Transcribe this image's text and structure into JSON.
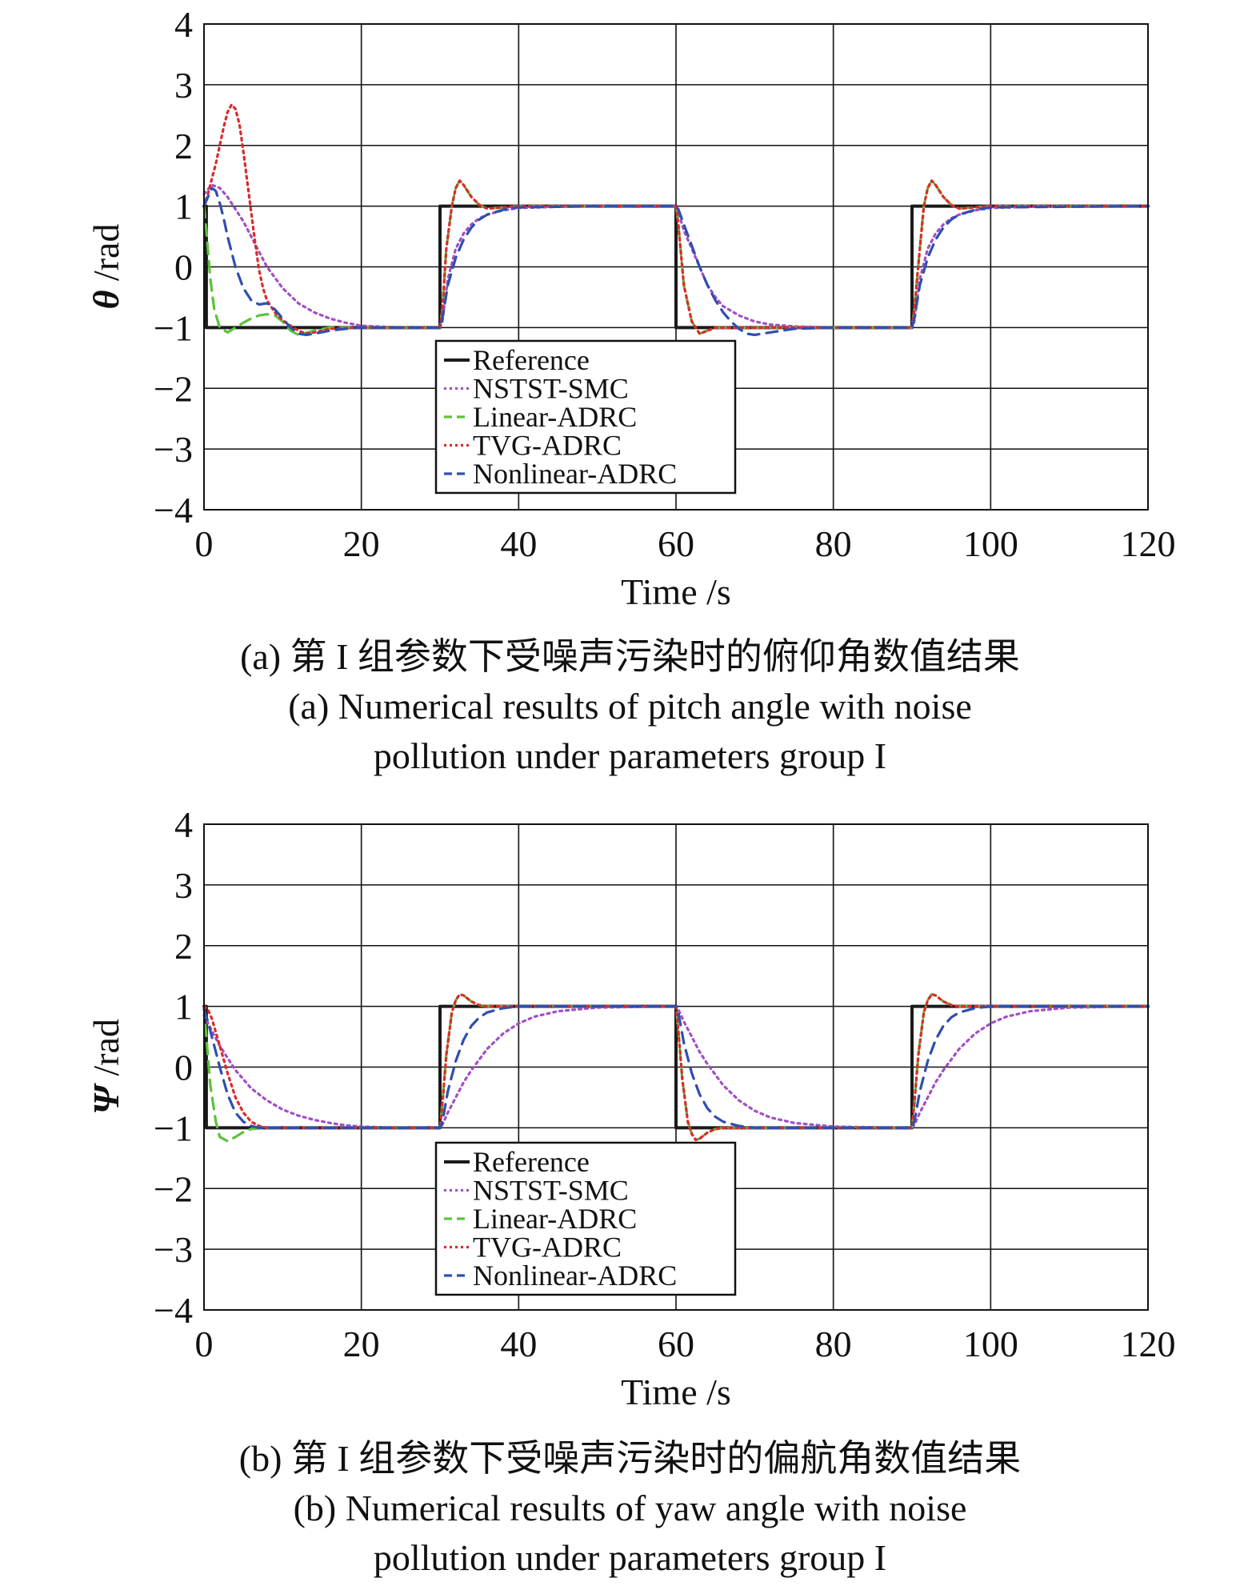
{
  "colors": {
    "Reference": "#1a1a1a",
    "NSTST-SMC": "#a24fc4",
    "Linear-ADRC": "#5cc23a",
    "TVG-ADRC": "#dd2a2a",
    "Nonlinear-ADRC": "#2e4fb0",
    "grid": "#111111"
  },
  "chart_data": [
    {
      "type": "line",
      "xlabel": "Time /s",
      "ylabel_symbol": "θ",
      "ylabel_unit": " /rad",
      "xlim": [
        0,
        120
      ],
      "ylim": [
        -4,
        4
      ],
      "xticks": [
        "0",
        "20",
        "40",
        "60",
        "80",
        "100",
        "120"
      ],
      "yticks": [
        "4",
        "3",
        "2",
        "1",
        "0",
        "−1",
        "−2",
        "−3",
        "−4"
      ],
      "grid": true,
      "legend_position": "bottom-center",
      "legend": [
        "Reference",
        "NSTST-SMC",
        "Linear-ADRC",
        "TVG-ADRC",
        "Nonlinear-ADRC"
      ],
      "series": [
        {
          "name": "Reference",
          "style": "solid",
          "x": [
            0,
            0.3,
            0.3,
            30,
            30,
            60,
            60,
            90,
            90,
            120
          ],
          "y": [
            1,
            1,
            -1,
            -1,
            1,
            1,
            -1,
            -1,
            1,
            1
          ]
        },
        {
          "name": "NSTST-SMC",
          "style": "dotted",
          "x": [
            0,
            1,
            2,
            3,
            4,
            5,
            6,
            7,
            8,
            10,
            12,
            14,
            16,
            18,
            20,
            25,
            30,
            30.3,
            31,
            32,
            33,
            34,
            35,
            36,
            38,
            40,
            45,
            50,
            60,
            60.3,
            61,
            62,
            63,
            64,
            65,
            66,
            68,
            70,
            72,
            75,
            80,
            90,
            90.3,
            91,
            92,
            93,
            94,
            95,
            96,
            98,
            100,
            105,
            110,
            120
          ],
          "y": [
            1.2,
            1.35,
            1.3,
            1.15,
            0.95,
            0.75,
            0.5,
            0.25,
            0.0,
            -0.35,
            -0.6,
            -0.75,
            -0.85,
            -0.92,
            -0.97,
            -1.0,
            -1.0,
            -0.9,
            -0.2,
            0.3,
            0.55,
            0.7,
            0.8,
            0.86,
            0.93,
            0.97,
            0.99,
            1.0,
            1.0,
            0.9,
            0.6,
            0.3,
            0.0,
            -0.3,
            -0.5,
            -0.65,
            -0.8,
            -0.9,
            -0.95,
            -0.98,
            -1.0,
            -1.0,
            -0.9,
            -0.2,
            0.3,
            0.55,
            0.7,
            0.8,
            0.86,
            0.93,
            0.97,
            0.99,
            1.0,
            1.0
          ]
        },
        {
          "name": "Linear-ADRC",
          "style": "dashed",
          "x": [
            0,
            0.3,
            0.8,
            1.3,
            2,
            3,
            4,
            5,
            6,
            7,
            8,
            9,
            10,
            11,
            12,
            14,
            16,
            20,
            30,
            30.3,
            30.8,
            31.5,
            32,
            32.5,
            33,
            34,
            35,
            36,
            38,
            40,
            50,
            60,
            60.3,
            61,
            62,
            63,
            64,
            65,
            66,
            68,
            70,
            80,
            90,
            90.3,
            91,
            91.5,
            92,
            92.5,
            93,
            94,
            95,
            96,
            98,
            100,
            110,
            120
          ],
          "y": [
            1.0,
            0.6,
            -0.2,
            -0.7,
            -1.0,
            -1.08,
            -1.0,
            -0.92,
            -0.85,
            -0.8,
            -0.78,
            -0.8,
            -0.9,
            -1.05,
            -1.12,
            -1.05,
            -1.0,
            -1.0,
            -1.0,
            -0.7,
            0.3,
            1.0,
            1.3,
            1.42,
            1.35,
            1.15,
            1.02,
            0.96,
            0.98,
            1.0,
            1.0,
            1.0,
            0.7,
            -0.3,
            -0.9,
            -1.1,
            -1.05,
            -1.0,
            -1.0,
            -1.0,
            -1.0,
            -1.0,
            -1.0,
            -0.7,
            0.3,
            1.0,
            1.3,
            1.42,
            1.35,
            1.15,
            1.02,
            0.96,
            0.98,
            1.0,
            1.0,
            1.0
          ]
        },
        {
          "name": "TVG-ADRC",
          "style": "dotted",
          "x": [
            0,
            0.5,
            1,
            1.5,
            2,
            2.5,
            3,
            3.5,
            4,
            4.5,
            5,
            5.5,
            6,
            6.5,
            7,
            7.5,
            8,
            9,
            10,
            11,
            12,
            13,
            14,
            16,
            20,
            30,
            30.3,
            30.8,
            31.5,
            32,
            32.5,
            33,
            34,
            35,
            36,
            38,
            40,
            50,
            60,
            60.3,
            61,
            62,
            63,
            64,
            65,
            66,
            68,
            70,
            80,
            90,
            90.3,
            91,
            91.5,
            92,
            92.5,
            93,
            94,
            95,
            96,
            98,
            100,
            110,
            120
          ],
          "y": [
            1.0,
            1.2,
            1.45,
            1.7,
            2.0,
            2.3,
            2.55,
            2.67,
            2.6,
            2.35,
            1.9,
            1.4,
            0.9,
            0.4,
            -0.05,
            -0.35,
            -0.55,
            -0.75,
            -0.88,
            -0.97,
            -1.05,
            -1.1,
            -1.08,
            -1.02,
            -1.0,
            -1.0,
            -0.7,
            0.3,
            1.0,
            1.3,
            1.42,
            1.35,
            1.15,
            1.02,
            0.96,
            0.98,
            1.0,
            1.0,
            1.0,
            0.7,
            -0.3,
            -0.9,
            -1.1,
            -1.05,
            -1.0,
            -1.0,
            -1.0,
            -1.0,
            -1.0,
            -1.0,
            -0.7,
            0.3,
            1.0,
            1.3,
            1.42,
            1.35,
            1.15,
            1.02,
            0.96,
            0.98,
            1.0,
            1.0,
            1.0
          ]
        },
        {
          "name": "Nonlinear-ADRC",
          "style": "dashed",
          "x": [
            0,
            0.5,
            1,
            1.5,
            2,
            2.5,
            3,
            4,
            5,
            6,
            7,
            8,
            9,
            10,
            11,
            12,
            13,
            14,
            16,
            18,
            20,
            30,
            30.3,
            31,
            32,
            33,
            34,
            35,
            36,
            38,
            40,
            50,
            60,
            60.3,
            61,
            62,
            63,
            64,
            65,
            66,
            67,
            68,
            69,
            70,
            72,
            75,
            80,
            90,
            90.3,
            91,
            92,
            93,
            94,
            95,
            96,
            98,
            100,
            120
          ],
          "y": [
            1.0,
            1.15,
            1.3,
            1.25,
            1.05,
            0.8,
            0.5,
            0.0,
            -0.35,
            -0.55,
            -0.62,
            -0.6,
            -0.7,
            -0.85,
            -1.0,
            -1.1,
            -1.12,
            -1.1,
            -1.05,
            -1.02,
            -1.0,
            -1.0,
            -0.85,
            -0.3,
            0.15,
            0.45,
            0.65,
            0.78,
            0.86,
            0.94,
            0.98,
            1.0,
            1.0,
            0.95,
            0.7,
            0.35,
            0.0,
            -0.3,
            -0.55,
            -0.75,
            -0.9,
            -1.02,
            -1.1,
            -1.12,
            -1.08,
            -1.02,
            -1.0,
            -1.0,
            -0.85,
            -0.3,
            0.15,
            0.45,
            0.65,
            0.78,
            0.86,
            0.94,
            0.98,
            1.0
          ]
        }
      ]
    },
    {
      "type": "line",
      "xlabel": "Time /s",
      "ylabel_symbol": "Ψ",
      "ylabel_unit": " /rad",
      "xlim": [
        0,
        120
      ],
      "ylim": [
        -4,
        4
      ],
      "xticks": [
        "0",
        "20",
        "40",
        "60",
        "80",
        "100",
        "120"
      ],
      "yticks": [
        "4",
        "3",
        "2",
        "1",
        "0",
        "−1",
        "−2",
        "−3",
        "−4"
      ],
      "grid": true,
      "legend_position": "bottom-center",
      "legend": [
        "Reference",
        "NSTST-SMC",
        "Linear-ADRC",
        "TVG-ADRC",
        "Nonlinear-ADRC"
      ],
      "series": [
        {
          "name": "Reference",
          "style": "solid",
          "x": [
            0,
            0.3,
            0.3,
            30,
            30,
            60,
            60,
            90,
            90,
            120
          ],
          "y": [
            1,
            1,
            -1,
            -1,
            1,
            1,
            -1,
            -1,
            1,
            1
          ]
        },
        {
          "name": "NSTST-SMC",
          "style": "dotted",
          "x": [
            0,
            1,
            2,
            3,
            4,
            6,
            8,
            10,
            12,
            14,
            16,
            18,
            20,
            25,
            30,
            30.3,
            31,
            32,
            33,
            34,
            36,
            38,
            40,
            42,
            45,
            50,
            60,
            60.3,
            61,
            62,
            63,
            64,
            66,
            68,
            70,
            72,
            75,
            80,
            90,
            90.3,
            91,
            92,
            93,
            94,
            96,
            98,
            100,
            102,
            105,
            110,
            120
          ],
          "y": [
            0.85,
            0.6,
            0.35,
            0.15,
            -0.05,
            -0.35,
            -0.55,
            -0.7,
            -0.8,
            -0.87,
            -0.92,
            -0.96,
            -0.98,
            -1.0,
            -1.0,
            -0.95,
            -0.75,
            -0.5,
            -0.25,
            -0.05,
            0.3,
            0.55,
            0.72,
            0.83,
            0.92,
            0.98,
            1.0,
            0.95,
            0.75,
            0.5,
            0.25,
            0.05,
            -0.3,
            -0.55,
            -0.72,
            -0.83,
            -0.92,
            -0.98,
            -1.0,
            -0.95,
            -0.75,
            -0.5,
            -0.25,
            -0.05,
            0.3,
            0.55,
            0.72,
            0.83,
            0.92,
            0.98,
            1.0
          ]
        },
        {
          "name": "Linear-ADRC",
          "style": "dashed",
          "x": [
            0,
            0.3,
            0.8,
            1.5,
            2,
            3,
            4,
            5,
            6,
            8,
            10,
            20,
            30,
            30.3,
            30.8,
            31.5,
            32,
            32.5,
            33,
            34,
            35,
            36,
            38,
            40,
            60,
            60.3,
            60.8,
            61.5,
            62,
            62.5,
            63,
            64,
            65,
            66,
            68,
            70,
            90,
            90.3,
            90.8,
            91.5,
            92,
            92.5,
            93,
            94,
            95,
            96,
            98,
            100,
            120
          ],
          "y": [
            1.0,
            0.5,
            -0.3,
            -0.9,
            -1.15,
            -1.22,
            -1.15,
            -1.07,
            -1.02,
            -1.0,
            -1.0,
            -1.0,
            -1.0,
            -0.6,
            0.2,
            0.9,
            1.1,
            1.2,
            1.18,
            1.08,
            1.02,
            1.0,
            1.0,
            1.0,
            1.0,
            0.6,
            -0.2,
            -0.9,
            -1.1,
            -1.2,
            -1.18,
            -1.08,
            -1.02,
            -1.0,
            -1.0,
            -1.0,
            -1.0,
            -0.6,
            0.2,
            0.9,
            1.1,
            1.2,
            1.18,
            1.08,
            1.02,
            1.0,
            1.0,
            1.0,
            1.0
          ]
        },
        {
          "name": "TVG-ADRC",
          "style": "dotted",
          "x": [
            0,
            0.5,
            1,
            2,
            3,
            4,
            5,
            6,
            7,
            8,
            10,
            20,
            30,
            30.3,
            30.8,
            31.5,
            32,
            32.5,
            33,
            34,
            35,
            36,
            38,
            40,
            60,
            60.3,
            60.8,
            61.5,
            62,
            62.5,
            63,
            64,
            65,
            66,
            68,
            70,
            90,
            90.3,
            90.8,
            91.5,
            92,
            92.5,
            93,
            94,
            95,
            96,
            98,
            100,
            120
          ],
          "y": [
            1.0,
            0.95,
            0.8,
            0.35,
            -0.1,
            -0.5,
            -0.75,
            -0.9,
            -0.97,
            -1.0,
            -1.0,
            -1.0,
            -1.0,
            -0.6,
            0.2,
            0.9,
            1.1,
            1.2,
            1.18,
            1.08,
            1.02,
            1.0,
            1.0,
            1.0,
            1.0,
            0.6,
            -0.2,
            -0.9,
            -1.1,
            -1.2,
            -1.18,
            -1.08,
            -1.02,
            -1.0,
            -1.0,
            -1.0,
            -1.0,
            -0.6,
            0.2,
            0.9,
            1.1,
            1.2,
            1.18,
            1.08,
            1.02,
            1.0,
            1.0,
            1.0,
            1.0
          ]
        },
        {
          "name": "Nonlinear-ADRC",
          "style": "dashed",
          "x": [
            0,
            0.5,
            1,
            1.5,
            2,
            3,
            4,
            5,
            6,
            7,
            8,
            10,
            20,
            30,
            30.3,
            31,
            32,
            33,
            34,
            35,
            36,
            38,
            40,
            60,
            60.3,
            61,
            62,
            63,
            64,
            65,
            66,
            68,
            70,
            90,
            90.3,
            91,
            92,
            93,
            94,
            95,
            96,
            98,
            100,
            120
          ],
          "y": [
            0.95,
            0.75,
            0.5,
            0.25,
            0.0,
            -0.45,
            -0.75,
            -0.9,
            -0.97,
            -1.0,
            -1.0,
            -1.0,
            -1.0,
            -1.0,
            -0.9,
            -0.4,
            0.1,
            0.45,
            0.68,
            0.82,
            0.9,
            0.97,
            1.0,
            1.0,
            0.9,
            0.4,
            -0.1,
            -0.45,
            -0.68,
            -0.82,
            -0.9,
            -0.97,
            -1.0,
            -1.0,
            -0.9,
            -0.4,
            0.1,
            0.45,
            0.68,
            0.82,
            0.9,
            0.97,
            1.0,
            1.0
          ]
        }
      ]
    }
  ],
  "captions": {
    "a": {
      "cn": "(a) 第 I 组参数下受噪声污染时的俯仰角数值结果",
      "en1": "(a) Numerical results of pitch angle with noise",
      "en2": "pollution under  parameters group I"
    },
    "b": {
      "cn": "(b) 第 I 组参数下受噪声污染时的偏航角数值结果",
      "en1": "(b) Numerical results of yaw angle with noise",
      "en2": "pollution under  parameters group I"
    }
  }
}
